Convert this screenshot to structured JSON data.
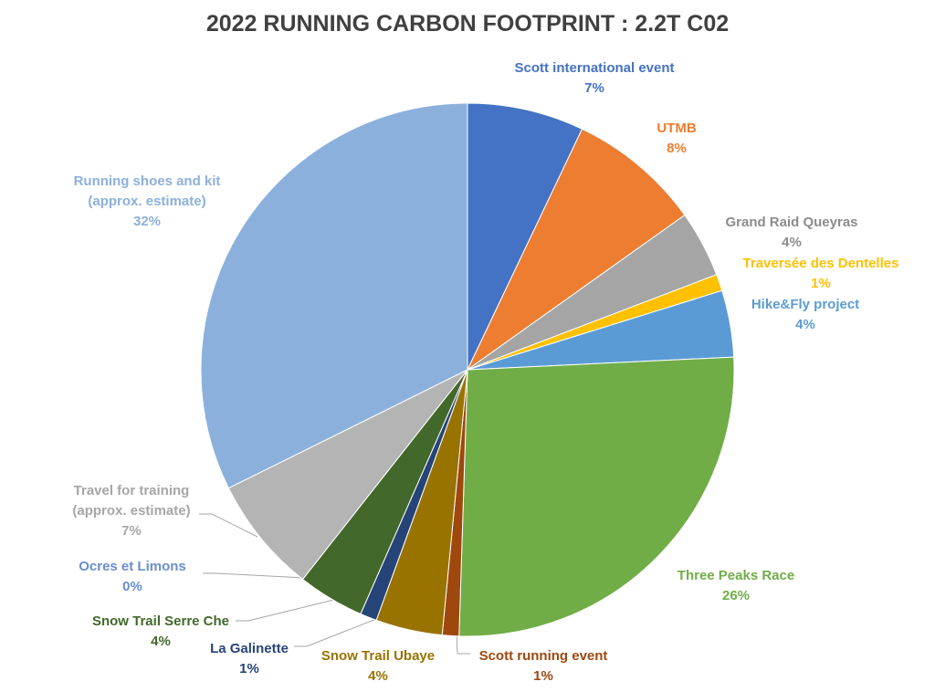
{
  "chart_data": {
    "type": "pie",
    "title": "2022 RUNNING CARBON FOOTPRINT : 2.2T C02",
    "categories": [
      "Scott international event",
      "UTMB",
      "Grand Raid Queyras",
      "Traversée des Dentelles",
      "Hike&Fly project",
      "Three Peaks Race",
      "Scott running event",
      "Snow Trail Ubaye",
      "La Galinette",
      "Snow Trail Serre Che",
      "Ocres et Limons",
      "Travel for training (approx. estimate)",
      "Running shoes and kit (approx. estimate)"
    ],
    "values": [
      7,
      8,
      4,
      1,
      4,
      26,
      1,
      4,
      1,
      4,
      0,
      7,
      32
    ],
    "value_labels": [
      "7%",
      "8%",
      "4%",
      "1%",
      "4%",
      "26%",
      "1%",
      "4%",
      "1%",
      "4%",
      "0%",
      "7%",
      "32%"
    ],
    "colors": [
      "#4472c4",
      "#ed7d31",
      "#a5a5a5",
      "#ffc000",
      "#5b9bd5",
      "#70ad47",
      "#9e480e",
      "#997300",
      "#264478",
      "#43682b",
      "#698ed0",
      "#b4b4b4",
      "#8cb0dc"
    ]
  }
}
